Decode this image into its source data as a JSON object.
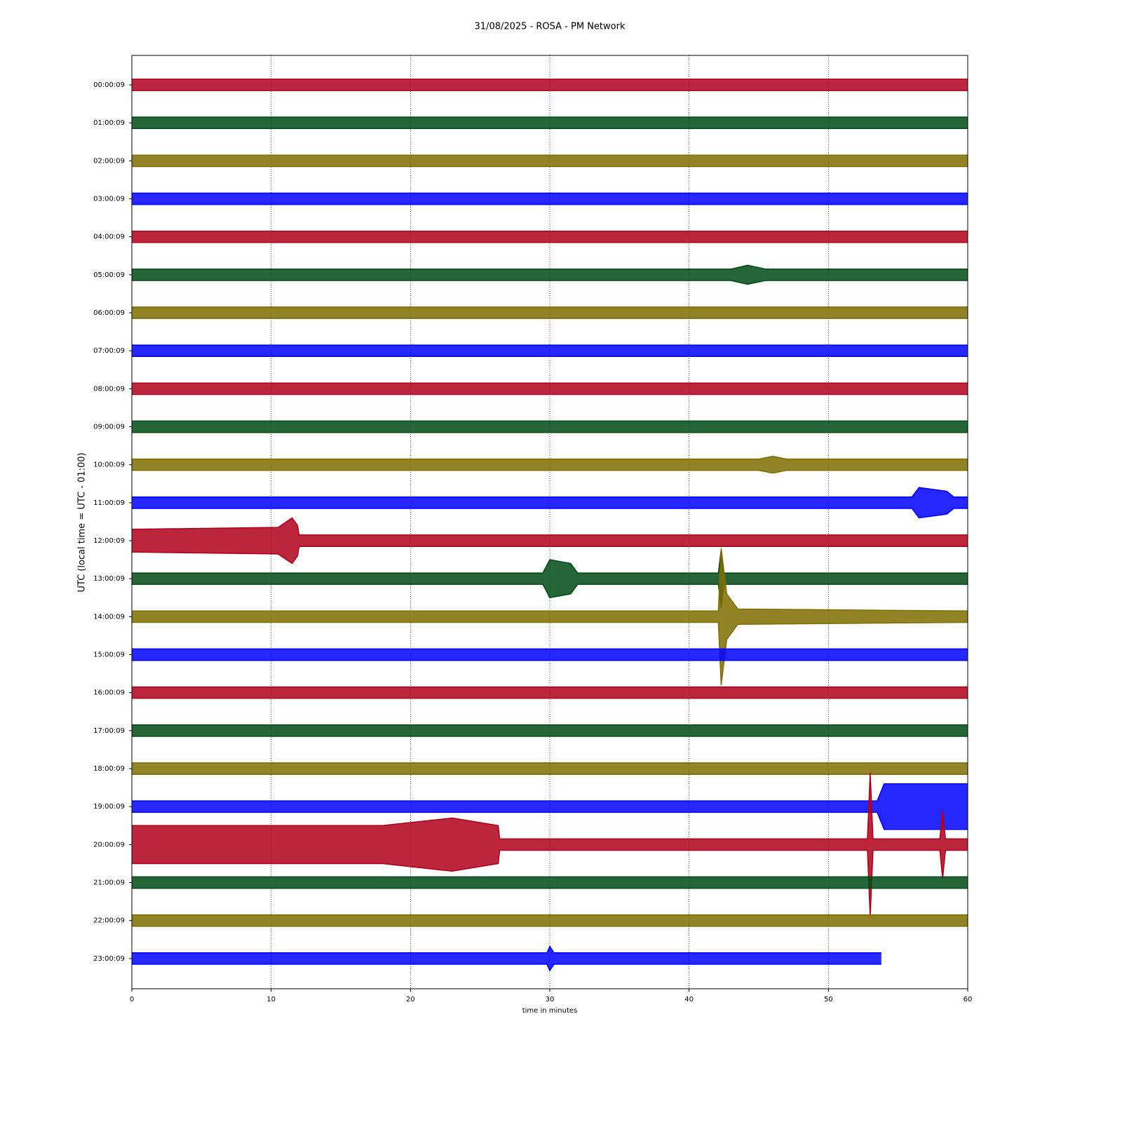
{
  "chart_data": {
    "type": "helicorder",
    "title": "31/08/2025 - ROSA - PM Network",
    "xlabel": "time in minutes",
    "ylabel": "UTC (local time = UTC - 01:00)",
    "xlim": [
      0,
      60
    ],
    "xticks": [
      0,
      10,
      20,
      30,
      40,
      50,
      60
    ],
    "grid": true,
    "categories": [
      "00:00:09",
      "01:00:09",
      "02:00:09",
      "03:00:09",
      "04:00:09",
      "05:00:09",
      "06:00:09",
      "07:00:09",
      "08:00:09",
      "09:00:09",
      "10:00:09",
      "11:00:09",
      "12:00:09",
      "13:00:09",
      "14:00:09",
      "15:00:09",
      "16:00:09",
      "17:00:09",
      "18:00:09",
      "19:00:09",
      "20:00:09",
      "21:00:09",
      "22:00:09",
      "23:00:09"
    ],
    "series": [
      {
        "color": "#b0001a",
        "x": [
          0,
          60
        ],
        "values": [
          0.15,
          0.15
        ]
      },
      {
        "color": "#004a14",
        "x": [
          0,
          60
        ],
        "values": [
          0.15,
          0.15
        ]
      },
      {
        "color": "#7f6d00",
        "x": [
          0,
          60
        ],
        "values": [
          0.15,
          0.15
        ]
      },
      {
        "color": "#0000ff",
        "x": [
          0,
          60
        ],
        "values": [
          0.15,
          0.15
        ]
      },
      {
        "color": "#b0001a",
        "x": [
          0,
          60
        ],
        "values": [
          0.15,
          0.15
        ]
      },
      {
        "color": "#004a14",
        "x": [
          0,
          43,
          44.2,
          45.5,
          60
        ],
        "values": [
          0.15,
          0.15,
          0.25,
          0.15,
          0.15
        ]
      },
      {
        "color": "#7f6d00",
        "x": [
          0,
          60
        ],
        "values": [
          0.15,
          0.15
        ]
      },
      {
        "color": "#0000ff",
        "x": [
          0,
          60
        ],
        "values": [
          0.15,
          0.15
        ]
      },
      {
        "color": "#b0001a",
        "x": [
          0,
          60
        ],
        "values": [
          0.15,
          0.15
        ]
      },
      {
        "color": "#004a14",
        "x": [
          0,
          60
        ],
        "values": [
          0.15,
          0.15
        ]
      },
      {
        "color": "#7f6d00",
        "x": [
          0,
          45,
          46,
          47,
          60
        ],
        "values": [
          0.15,
          0.15,
          0.22,
          0.15,
          0.15
        ]
      },
      {
        "color": "#0000ff",
        "x": [
          0,
          56,
          56.5,
          58.5,
          59,
          60
        ],
        "values": [
          0.15,
          0.15,
          0.4,
          0.3,
          0.15,
          0.15
        ]
      },
      {
        "color": "#b0001a",
        "x": [
          0,
          10.5,
          11.5,
          11.9,
          12,
          60
        ],
        "values": [
          0.3,
          0.35,
          0.6,
          0.4,
          0.15,
          0.15
        ]
      },
      {
        "color": "#004a14",
        "x": [
          0,
          29.5,
          30,
          31.5,
          32,
          42.1,
          42.3,
          42.5,
          60
        ],
        "values": [
          0.15,
          0.15,
          0.5,
          0.4,
          0.15,
          0.15,
          0.76,
          0.15,
          0.15
        ]
      },
      {
        "color": "#7f6d00",
        "x": [
          0,
          42.1,
          42.3,
          42.7,
          43.5,
          60
        ],
        "values": [
          0.15,
          0.15,
          1.8,
          0.6,
          0.2,
          0.15
        ]
      },
      {
        "color": "#0000ff",
        "x": [
          0,
          60
        ],
        "values": [
          0.15,
          0.15
        ]
      },
      {
        "color": "#b0001a",
        "x": [
          0,
          60
        ],
        "values": [
          0.15,
          0.15
        ]
      },
      {
        "color": "#004a14",
        "x": [
          0,
          60
        ],
        "values": [
          0.15,
          0.15
        ]
      },
      {
        "color": "#7f6d00",
        "x": [
          0,
          60
        ],
        "values": [
          0.15,
          0.15
        ]
      },
      {
        "color": "#0000ff",
        "x": [
          0,
          53.5,
          54,
          60
        ],
        "values": [
          0.15,
          0.15,
          0.6,
          0.6
        ]
      },
      {
        "color": "#b0001a",
        "x": [
          0,
          18,
          23,
          26.3,
          26.4,
          52.8,
          53,
          53.2,
          58,
          58.2,
          58.4,
          60
        ],
        "values": [
          0.5,
          0.5,
          0.7,
          0.5,
          0.15,
          0.15,
          1.9,
          0.15,
          0.15,
          0.9,
          0.15,
          0.15
        ]
      },
      {
        "color": "#004a14",
        "x": [
          0,
          60
        ],
        "values": [
          0.15,
          0.15
        ]
      },
      {
        "color": "#7f6d00",
        "x": [
          0,
          60
        ],
        "values": [
          0.15,
          0.15
        ]
      },
      {
        "color": "#0000ff",
        "x": [
          0,
          29.8,
          30,
          30.3,
          53.8
        ],
        "values": [
          0.15,
          0.15,
          0.32,
          0.15,
          0.15
        ]
      }
    ]
  }
}
